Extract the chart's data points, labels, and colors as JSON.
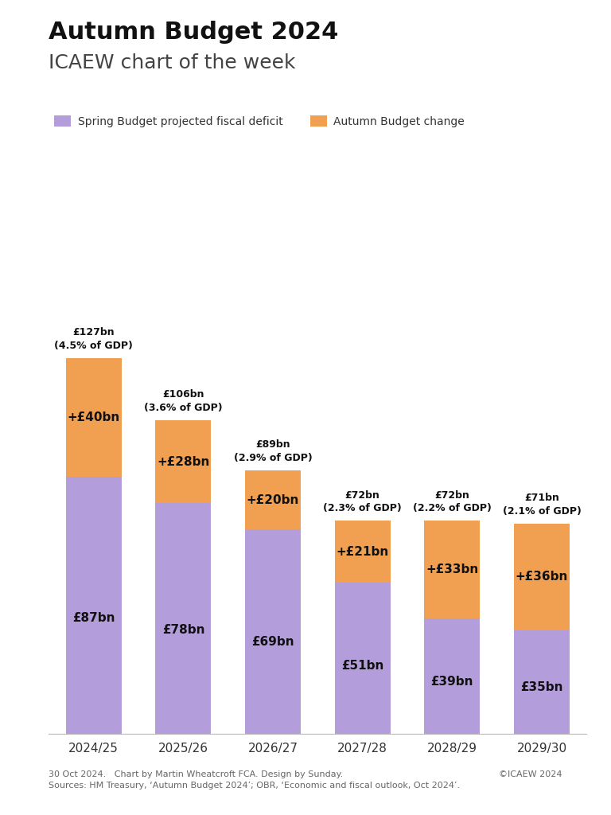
{
  "title_line1": "Autumn Budget 2024",
  "title_line2": "ICAEW chart of the week",
  "categories": [
    "2024/25",
    "2025/26",
    "2026/27",
    "2027/28",
    "2028/29",
    "2029/30"
  ],
  "spring_values": [
    87,
    78,
    69,
    51,
    39,
    35
  ],
  "autumn_changes": [
    40,
    28,
    20,
    21,
    33,
    36
  ],
  "totals": [
    127,
    106,
    89,
    72,
    72,
    71
  ],
  "gdp_pct": [
    "4.5%",
    "3.6%",
    "2.9%",
    "2.3%",
    "2.2%",
    "2.1%"
  ],
  "spring_color": "#b39ddb",
  "autumn_color": "#f0a050",
  "background_color": "#ffffff",
  "legend_spring": "Spring Budget projected fiscal deficit",
  "legend_autumn": "Autumn Budget change",
  "footer_left": "30 Oct 2024.   Chart by Martin Wheatcroft FCA. Design by Sunday.\nSources: HM Treasury, ‘Autumn Budget 2024’; OBR, ‘Economic and fiscal outlook, Oct 2024’.",
  "footer_right": "©ICAEW 2024"
}
